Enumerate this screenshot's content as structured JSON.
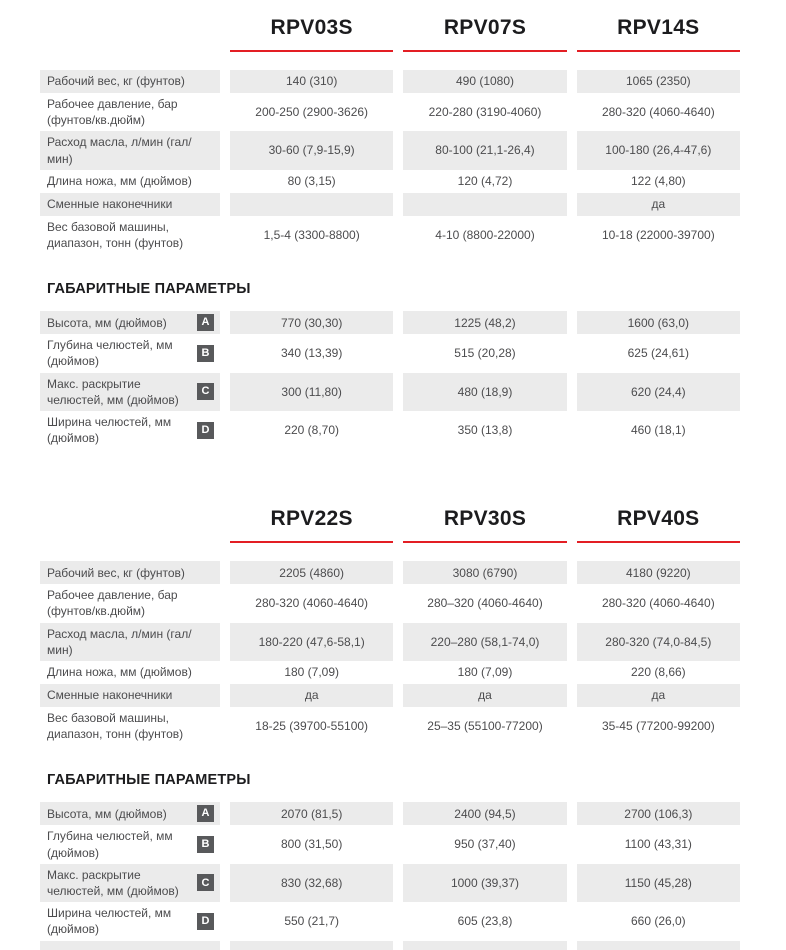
{
  "colors": {
    "accent": "#e31e24",
    "badge": "#58595b",
    "stripe": "#ebebeb"
  },
  "tables": [
    {
      "models": [
        "RPV03S",
        "RPV07S",
        "RPV14S"
      ],
      "spec_rows": [
        {
          "label": "Рабочий вес, кг (фунтов)",
          "values": [
            "140 (310)",
            "490 (1080)",
            "1065 (2350)"
          ]
        },
        {
          "label": "Рабочее давление, бар (фунтов/кв.дюйм)",
          "values": [
            "200-250 (2900-3626)",
            "220-280 (3190-4060)",
            "280-320 (4060-4640)"
          ]
        },
        {
          "label": "Расход масла, л/мин (гал/мин)",
          "values": [
            "30-60 (7,9-15,9)",
            "80-100 (21,1-26,4)",
            "100-180 (26,4-47,6)"
          ]
        },
        {
          "label": "Длина ножа, мм (дюймов)",
          "values": [
            "80 (3,15)",
            "120 (4,72)",
            "122 (4,80)"
          ]
        },
        {
          "label": "Сменные наконечники",
          "values": [
            "",
            "",
            "да"
          ]
        },
        {
          "label": "Вес базовой машины, диапазон, тонн (фунтов)",
          "values": [
            "1,5-4 (3300-8800)",
            "4-10 (8800-22000)",
            "10-18 (22000-39700)"
          ]
        }
      ],
      "dims_heading": "ГАБАРИТНЫЕ ПАРАМЕТРЫ",
      "dim_rows": [
        {
          "letter": "A",
          "label": "Высота, мм (дюймов)",
          "values": [
            "770 (30,30)",
            "1225 (48,2)",
            "1600 (63,0)"
          ]
        },
        {
          "letter": "B",
          "label": "Глубина челюстей, мм (дюймов)",
          "values": [
            "340 (13,39)",
            "515 (20,28)",
            "625 (24,61)"
          ]
        },
        {
          "letter": "C",
          "label": "Макс. раскрытие челюстей, мм (дюймов)",
          "values": [
            "300 (11,80)",
            "480 (18,9)",
            "620 (24,4)"
          ]
        },
        {
          "letter": "D",
          "label": "Ширина челюстей, мм (дюймов)",
          "values": [
            "220 (8,70)",
            "350 (13,8)",
            "460 (18,1)"
          ]
        }
      ]
    },
    {
      "models": [
        "RPV22S",
        "RPV30S",
        "RPV40S"
      ],
      "spec_rows": [
        {
          "label": "Рабочий вес, кг (фунтов)",
          "values": [
            "2205 (4860)",
            "3080 (6790)",
            "4180 (9220)"
          ]
        },
        {
          "label": "Рабочее давление, бар (фунтов/кв.дюйм)",
          "values": [
            "280-320 (4060-4640)",
            "280–320 (4060-4640)",
            "280-320 (4060-4640)"
          ]
        },
        {
          "label": "Расход масла, л/мин (гал/мин)",
          "values": [
            "180-220 (47,6-58,1)",
            "220–280 (58,1-74,0)",
            "280-320 (74,0-84,5)"
          ]
        },
        {
          "label": "Длина ножа, мм (дюймов)",
          "values": [
            "180 (7,09)",
            "180 (7,09)",
            "220 (8,66)"
          ]
        },
        {
          "label": "Сменные наконечники",
          "values": [
            "да",
            "да",
            "да"
          ]
        },
        {
          "label": "Вес базовой машины, диапазон, тонн (фунтов)",
          "values": [
            "18-25 (39700-55100)",
            "25–35 (55100-77200)",
            "35-45 (77200-99200)"
          ]
        }
      ],
      "dims_heading": "ГАБАРИТНЫЕ ПАРАМЕТРЫ",
      "dim_rows": [
        {
          "letter": "A",
          "label": "Высота, мм (дюймов)",
          "values": [
            "2070 (81,5)",
            "2400 (94,5)",
            "2700 (106,3)"
          ]
        },
        {
          "letter": "B",
          "label": "Глубина челюстей, мм (дюймов)",
          "values": [
            "800 (31,50)",
            "950 (37,40)",
            "1100 (43,31)"
          ]
        },
        {
          "letter": "C",
          "label": "Макс. раскрытие челюстей, мм (дюймов)",
          "values": [
            "830 (32,68)",
            "1000 (39,37)",
            "1150 (45,28)"
          ]
        },
        {
          "letter": "D",
          "label": "Ширина челюстей, мм (дюймов)",
          "values": [
            "550 (21,7)",
            "605 (23,8)",
            "660 (26,0)"
          ]
        }
      ]
    }
  ]
}
